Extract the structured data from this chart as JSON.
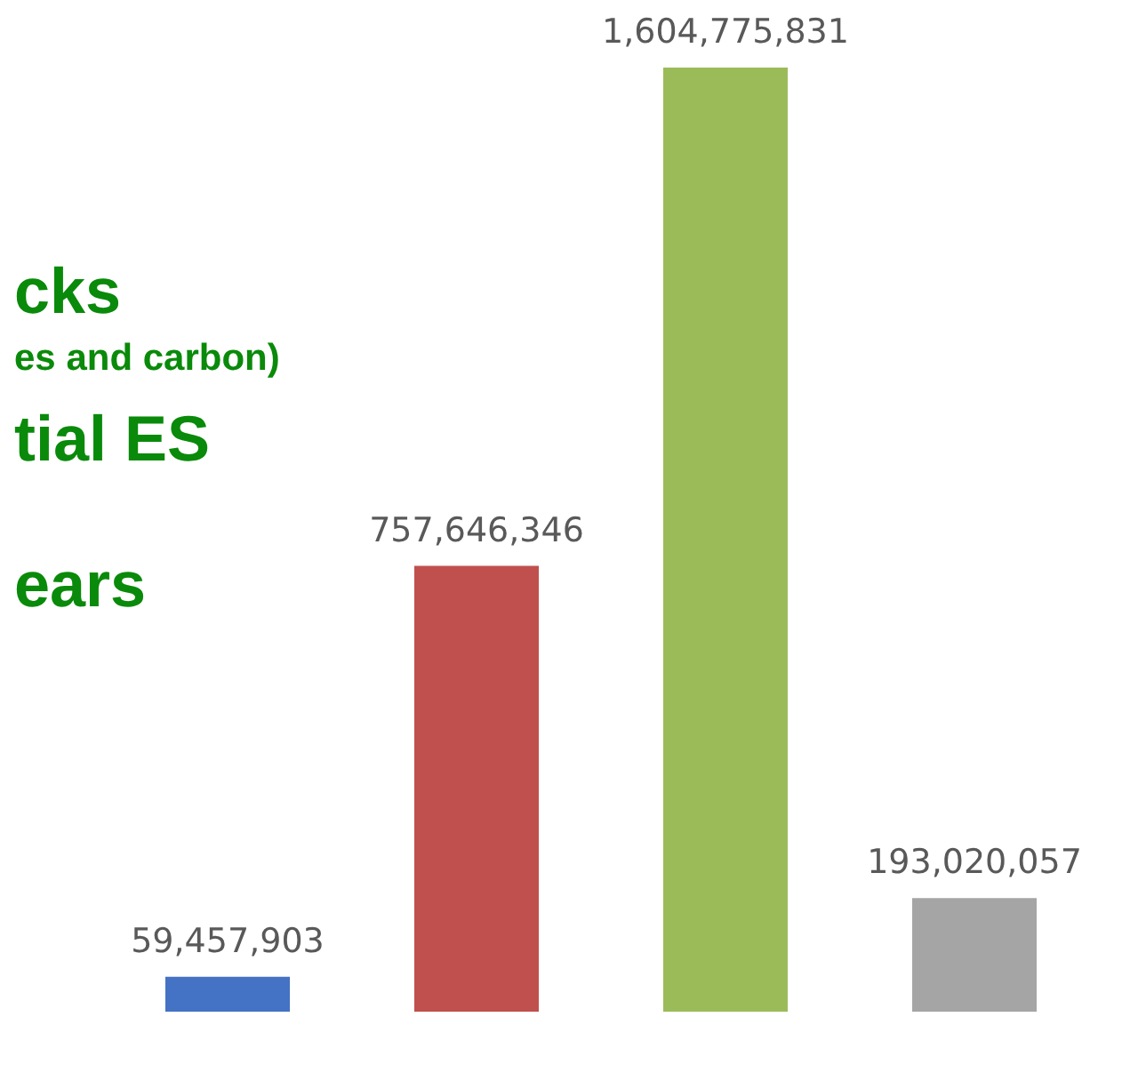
{
  "chart_data": {
    "type": "bar",
    "categories": [
      null,
      null,
      null,
      null
    ],
    "values": [
      59457903,
      757646346,
      1604775831,
      193020057
    ],
    "colors": [
      "#4472c4",
      "#c0504d",
      "#9bbb59",
      "#a5a5a5"
    ],
    "value_labels": [
      "59,457,903",
      "757,646,346",
      "1,604,775,831",
      "193,020,057"
    ],
    "annotations": [
      "cks",
      "es and carbon)",
      "tial ES",
      "ears"
    ]
  }
}
